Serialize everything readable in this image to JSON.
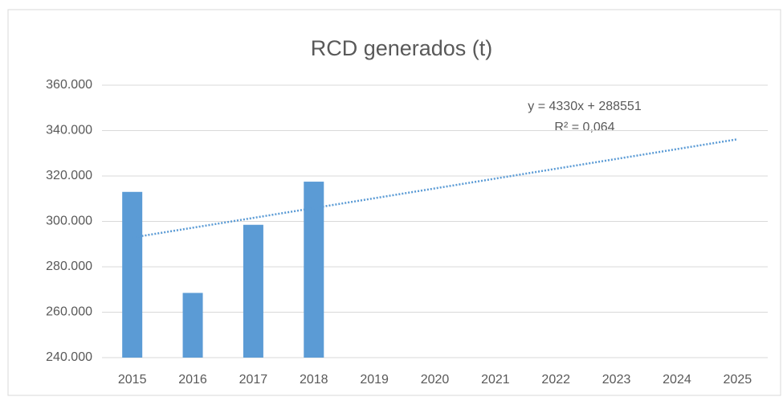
{
  "chart_data": {
    "type": "bar",
    "title": "RCD generados (t)",
    "categories": [
      "2015",
      "2016",
      "2017",
      "2018",
      "2019",
      "2020",
      "2021",
      "2022",
      "2023",
      "2024",
      "2025"
    ],
    "values": [
      313000,
      268500,
      298500,
      317500,
      null,
      null,
      null,
      null,
      null,
      null,
      null
    ],
    "color": "#5b9bd5",
    "ylim": [
      240000,
      360000
    ],
    "yticks": [
      {
        "value": 240000,
        "label": "240.000"
      },
      {
        "value": 260000,
        "label": "260.000"
      },
      {
        "value": 280000,
        "label": "280.000"
      },
      {
        "value": 300000,
        "label": "300.000"
      },
      {
        "value": 320000,
        "label": "320.000"
      },
      {
        "value": 340000,
        "label": "340.000"
      },
      {
        "value": 360000,
        "label": "360.000"
      }
    ],
    "grid": true,
    "trendline": {
      "slope": 4330,
      "intercept": 288551,
      "equation": "y = 4330x + 288551",
      "r2": "R² = 0,064",
      "color": "#5b9bd5"
    }
  }
}
